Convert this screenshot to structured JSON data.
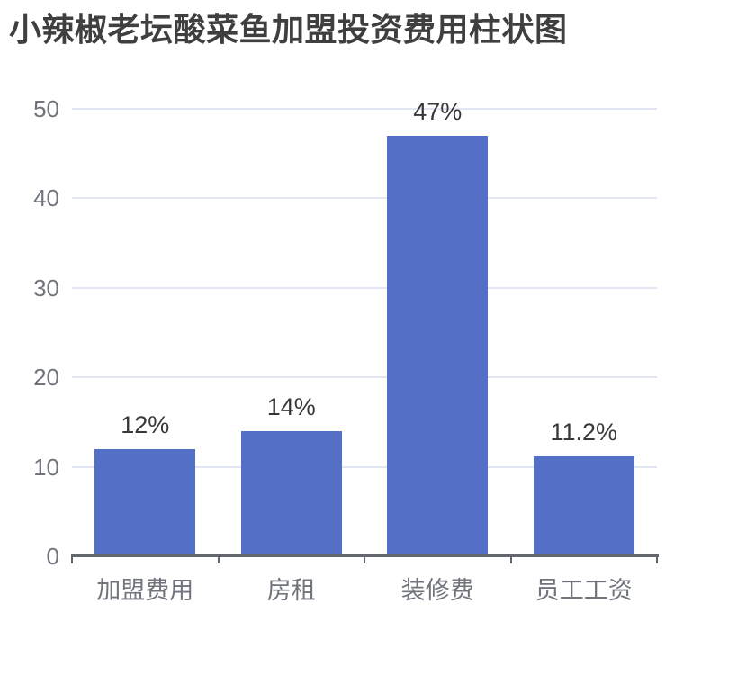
{
  "chart_data": {
    "type": "bar",
    "title": "小辣椒老坛酸菜鱼加盟投资费用柱状图",
    "categories": [
      "加盟费用",
      "房租",
      "装修费",
      "员工工资"
    ],
    "values": [
      12,
      14,
      47,
      11.2
    ],
    "data_labels": [
      "12%",
      "14%",
      "47%",
      "11.2%"
    ],
    "xlabel": "",
    "ylabel": "",
    "ylim": [
      0,
      50
    ],
    "yticks": [
      0,
      10,
      20,
      30,
      40,
      50
    ],
    "grid": "horizontal-lines",
    "legend": "none",
    "colors": {
      "bar": "#5470C6",
      "grid_line": "#E2E6F2",
      "axis_line": "#63666E",
      "axis_label": "#71747D",
      "value_label": "#383838",
      "title": "#3F3F3F"
    }
  }
}
